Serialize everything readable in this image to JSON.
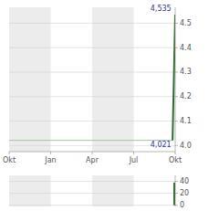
{
  "chart_data": [
    {
      "type": "line",
      "x": [
        0,
        247,
        248,
        249,
        250,
        251,
        252
      ],
      "series": [
        {
          "color": "#a0c8a0",
          "values": [
            4.021,
            4.021,
            null,
            null,
            null,
            null,
            null
          ]
        },
        {
          "color": "#2a6e2a",
          "values": [
            null,
            null,
            4.021,
            4.1495,
            4.278,
            4.4065,
            4.535
          ]
        }
      ],
      "xlim": [
        0,
        252
      ],
      "xticks": [
        {
          "value": 0,
          "label": "Okt"
        },
        {
          "value": 63,
          "label": "Jan"
        },
        {
          "value": 126,
          "label": "Apr"
        },
        {
          "value": 189,
          "label": "Jul"
        },
        {
          "value": 252,
          "label": "Okt"
        }
      ],
      "ylim": [
        3.975,
        4.565
      ],
      "yticks": [
        {
          "value": 4.0,
          "label": "4.0"
        },
        4.1,
        4.2,
        4.3,
        4.4,
        4.5
      ],
      "bands": [
        [
          0,
          63
        ],
        [
          126,
          189
        ]
      ],
      "annotations": [
        {
          "text": "4,535",
          "x": 246,
          "y": 4.535
        },
        {
          "text": "4,021",
          "x": 246,
          "y": 4.021
        }
      ],
      "grid": true
    },
    {
      "type": "bar",
      "x": [
        252
      ],
      "values": [
        38
      ],
      "color": "#2a6e2a",
      "xlim": [
        0,
        252
      ],
      "ylim": [
        -2,
        50
      ],
      "yticks": [
        0,
        20,
        40
      ],
      "bands": [
        [
          0,
          63
        ],
        [
          126,
          189
        ]
      ],
      "grid": true,
      "tick_labels": "y"
    }
  ]
}
